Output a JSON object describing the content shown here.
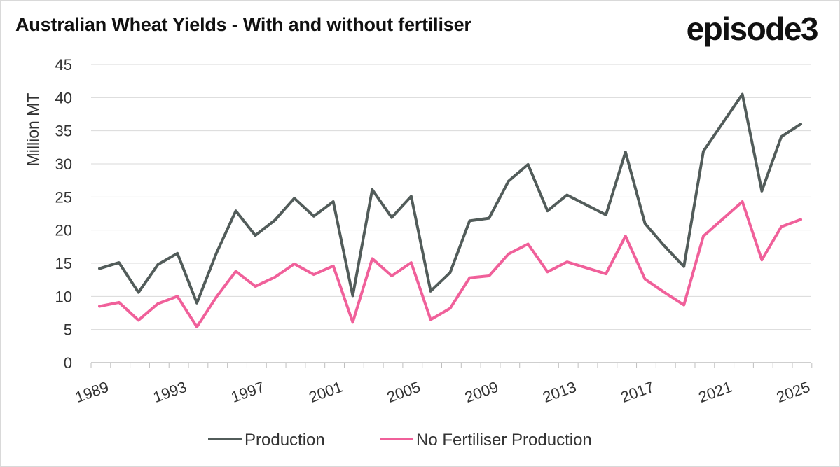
{
  "title": "Australian Wheat Yields - With and without fertiliser",
  "brand": "episode3",
  "colors": {
    "production": "#525c5a",
    "no_fertiliser": "#f0609a",
    "grid": "#d9d9d9",
    "axis": "#bfbfbf"
  },
  "chart_data": {
    "type": "line",
    "title": "Australian Wheat Yields - With and without fertiliser",
    "xlabel": "",
    "ylabel": "Million MT",
    "ylim": [
      0,
      45
    ],
    "yticks": [
      0,
      5,
      10,
      15,
      20,
      25,
      30,
      35,
      40,
      45
    ],
    "xtick_labels": [
      "1989",
      "1993",
      "1997",
      "2001",
      "2005",
      "2009",
      "2013",
      "2017",
      "2021",
      "2025"
    ],
    "x": [
      1989,
      1990,
      1991,
      1992,
      1993,
      1994,
      1995,
      1996,
      1997,
      1998,
      1999,
      2000,
      2001,
      2002,
      2003,
      2004,
      2005,
      2006,
      2007,
      2008,
      2009,
      2010,
      2011,
      2012,
      2013,
      2014,
      2015,
      2016,
      2017,
      2018,
      2019,
      2020,
      2021,
      2022,
      2023,
      2024,
      2025
    ],
    "series": [
      {
        "name": "Production",
        "color": "#525c5a",
        "values": [
          14.2,
          15.1,
          10.6,
          14.8,
          16.5,
          9.0,
          16.5,
          22.9,
          19.2,
          21.5,
          24.8,
          22.1,
          24.3,
          10.1,
          26.1,
          21.9,
          25.1,
          10.8,
          13.6,
          21.4,
          21.8,
          27.4,
          29.9,
          22.9,
          25.3,
          23.8,
          22.3,
          31.8,
          21.0,
          17.6,
          14.5,
          31.9,
          36.2,
          40.5,
          25.9,
          34.1,
          36.0
        ]
      },
      {
        "name": "No Fertiliser Production",
        "color": "#f0609a",
        "values": [
          8.5,
          9.1,
          6.4,
          8.9,
          10.0,
          5.4,
          9.9,
          13.8,
          11.5,
          12.9,
          14.9,
          13.3,
          14.6,
          6.1,
          15.7,
          13.1,
          15.1,
          6.5,
          8.2,
          12.8,
          13.1,
          16.4,
          17.9,
          13.7,
          15.2,
          14.3,
          13.4,
          19.1,
          12.6,
          10.6,
          8.7,
          19.1,
          21.7,
          24.3,
          15.5,
          20.5,
          21.6
        ]
      }
    ],
    "legend": {
      "placement": "bottom"
    },
    "grid": true
  }
}
